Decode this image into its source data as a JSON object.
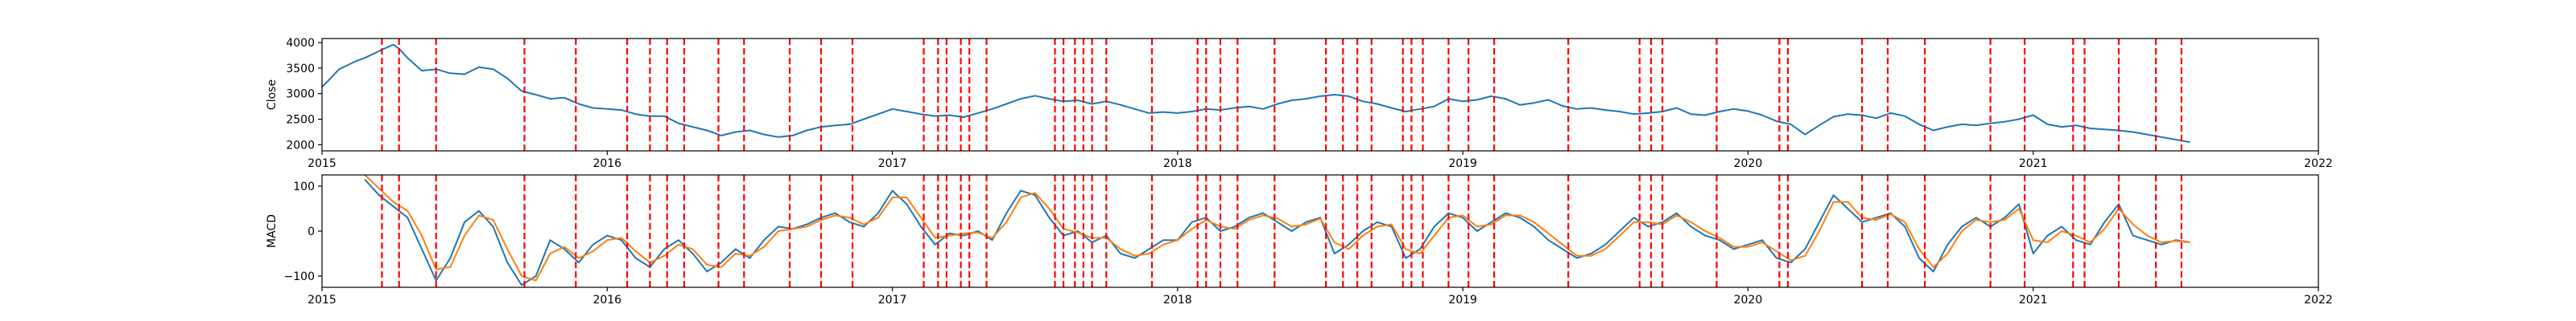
{
  "chart_data": [
    {
      "type": "line",
      "title": "",
      "xlabel": "",
      "ylabel": "Close",
      "xlim": [
        2015.0,
        2022.0
      ],
      "ylim": [
        1880,
        4080
      ],
      "x_ticks": [
        2015,
        2016,
        2017,
        2018,
        2019,
        2020,
        2021,
        2022
      ],
      "x_tick_labels": [
        "2015",
        "2016",
        "2017",
        "2018",
        "2019",
        "2020",
        "2021",
        "2022"
      ],
      "y_ticks": [
        2000,
        2500,
        3000,
        3500,
        4000
      ],
      "y_tick_labels": [
        "2000",
        "2500",
        "3000",
        "3500",
        "4000"
      ],
      "grid": false,
      "series": [
        {
          "color": "#1f77b4",
          "x": [
            2015.0,
            2015.03,
            2015.06,
            2015.09,
            2015.12,
            2015.15,
            2015.18,
            2015.21,
            2015.25,
            2015.27,
            2015.3,
            2015.35,
            2015.4,
            2015.45,
            2015.5,
            2015.55,
            2015.6,
            2015.65,
            2015.7,
            2015.75,
            2015.8,
            2015.85,
            2015.9,
            2015.95,
            2016.0,
            2016.05,
            2016.1,
            2016.15,
            2016.2,
            2016.25,
            2016.3,
            2016.35,
            2016.4,
            2016.45,
            2016.5,
            2016.55,
            2016.6,
            2016.65,
            2016.7,
            2016.75,
            2016.8,
            2016.85,
            2016.9,
            2016.95,
            2017.0,
            2017.05,
            2017.1,
            2017.15,
            2017.2,
            2017.25,
            2017.3,
            2017.35,
            2017.4,
            2017.45,
            2017.5,
            2017.55,
            2017.6,
            2017.65,
            2017.7,
            2017.75,
            2017.8,
            2017.85,
            2017.9,
            2017.95,
            2018.0,
            2018.05,
            2018.1,
            2018.15,
            2018.2,
            2018.25,
            2018.3,
            2018.35,
            2018.4,
            2018.45,
            2018.5,
            2018.55,
            2018.6,
            2018.65,
            2018.7,
            2018.75,
            2018.8,
            2018.85,
            2018.9,
            2018.95,
            2019.0,
            2019.05,
            2019.1,
            2019.15,
            2019.2,
            2019.25,
            2019.3,
            2019.35,
            2019.4,
            2019.45,
            2019.5,
            2019.55,
            2019.6,
            2019.65,
            2019.7,
            2019.75,
            2019.8,
            2019.85,
            2019.9,
            2019.95,
            2020.0,
            2020.05,
            2020.1,
            2020.15,
            2020.2,
            2020.25,
            2020.3,
            2020.35,
            2020.4,
            2020.45,
            2020.5,
            2020.55,
            2020.6,
            2020.65,
            2020.7,
            2020.75,
            2020.8,
            2020.85,
            2020.9,
            2020.95,
            2021.0,
            2021.05,
            2021.1,
            2021.15,
            2021.2,
            2021.25,
            2021.3,
            2021.35,
            2021.4,
            2021.45,
            2021.5,
            2021.55
          ],
          "y": [
            3130,
            3300,
            3480,
            3560,
            3640,
            3700,
            3780,
            3860,
            3960,
            3880,
            3700,
            3450,
            3480,
            3400,
            3380,
            3520,
            3480,
            3300,
            3050,
            2980,
            2900,
            2920,
            2800,
            2720,
            2700,
            2680,
            2600,
            2560,
            2560,
            2420,
            2350,
            2280,
            2180,
            2250,
            2280,
            2200,
            2150,
            2180,
            2280,
            2350,
            2380,
            2400,
            2500,
            2600,
            2700,
            2650,
            2600,
            2560,
            2580,
            2540,
            2620,
            2700,
            2800,
            2900,
            2960,
            2900,
            2850,
            2870,
            2800,
            2850,
            2780,
            2700,
            2620,
            2640,
            2620,
            2650,
            2700,
            2680,
            2720,
            2750,
            2700,
            2800,
            2870,
            2900,
            2950,
            2980,
            2950,
            2850,
            2800,
            2720,
            2650,
            2700,
            2750,
            2900,
            2850,
            2880,
            2950,
            2900,
            2780,
            2820,
            2880,
            2760,
            2700,
            2720,
            2680,
            2650,
            2600,
            2620,
            2650,
            2720,
            2600,
            2580,
            2650,
            2700,
            2660,
            2580,
            2460,
            2400,
            2200,
            2380,
            2550,
            2600,
            2580,
            2520,
            2620,
            2560,
            2400,
            2280,
            2350,
            2400,
            2380,
            2420,
            2450,
            2500,
            2580,
            2400,
            2350,
            2380,
            2320,
            2300,
            2280,
            2250,
            2200,
            2150,
            2100,
            2050
          ]
        }
      ],
      "vlines": [
        2015.21,
        2015.27,
        2015.4,
        2015.71,
        2015.89,
        2016.07,
        2016.15,
        2016.21,
        2016.27,
        2016.39,
        2016.48,
        2016.64,
        2016.75,
        2016.86,
        2017.11,
        2017.16,
        2017.19,
        2017.24,
        2017.27,
        2017.33,
        2017.57,
        2017.6,
        2017.64,
        2017.67,
        2017.7,
        2017.75,
        2017.91,
        2018.07,
        2018.1,
        2018.15,
        2018.21,
        2018.34,
        2018.52,
        2018.58,
        2018.63,
        2018.68,
        2018.79,
        2018.82,
        2018.86,
        2018.95,
        2019.02,
        2019.11,
        2019.37,
        2019.62,
        2019.66,
        2019.7,
        2019.89,
        2020.11,
        2020.14,
        2020.4,
        2020.49,
        2020.62,
        2020.85,
        2020.97,
        2021.14,
        2021.18,
        2021.3,
        2021.43,
        2021.52
      ],
      "vline_color": "#ff0000"
    },
    {
      "type": "line",
      "title": "",
      "xlabel": "",
      "ylabel": "MACD",
      "xlim": [
        2015.0,
        2022.0
      ],
      "ylim": [
        -125,
        125
      ],
      "x_ticks": [
        2015,
        2016,
        2017,
        2018,
        2019,
        2020,
        2021,
        2022
      ],
      "x_tick_labels": [
        "2015",
        "2016",
        "2017",
        "2018",
        "2019",
        "2020",
        "2021",
        "2022"
      ],
      "y_ticks": [
        -100,
        0,
        100
      ],
      "y_tick_labels": [
        "−100",
        "0",
        "100"
      ],
      "grid": false,
      "series": [
        {
          "color": "#1f77b4",
          "x": [
            2015.15,
            2015.2,
            2015.25,
            2015.3,
            2015.35,
            2015.4,
            2015.45,
            2015.5,
            2015.55,
            2015.6,
            2015.65,
            2015.7,
            2015.75,
            2015.8,
            2015.85,
            2015.9,
            2015.95,
            2016.0,
            2016.05,
            2016.1,
            2016.15,
            2016.2,
            2016.25,
            2016.3,
            2016.35,
            2016.4,
            2016.45,
            2016.5,
            2016.55,
            2016.6,
            2016.65,
            2016.7,
            2016.75,
            2016.8,
            2016.85,
            2016.9,
            2016.95,
            2017.0,
            2017.05,
            2017.1,
            2017.15,
            2017.2,
            2017.25,
            2017.3,
            2017.35,
            2017.4,
            2017.45,
            2017.5,
            2017.55,
            2017.6,
            2017.65,
            2017.7,
            2017.75,
            2017.8,
            2017.85,
            2017.9,
            2017.95,
            2018.0,
            2018.05,
            2018.1,
            2018.15,
            2018.2,
            2018.25,
            2018.3,
            2018.35,
            2018.4,
            2018.45,
            2018.5,
            2018.55,
            2018.6,
            2018.65,
            2018.7,
            2018.75,
            2018.8,
            2018.85,
            2018.9,
            2018.95,
            2019.0,
            2019.05,
            2019.1,
            2019.15,
            2019.2,
            2019.25,
            2019.3,
            2019.35,
            2019.4,
            2019.45,
            2019.5,
            2019.55,
            2019.6,
            2019.65,
            2019.7,
            2019.75,
            2019.8,
            2019.85,
            2019.9,
            2019.95,
            2020.0,
            2020.05,
            2020.1,
            2020.15,
            2020.2,
            2020.25,
            2020.3,
            2020.35,
            2020.4,
            2020.45,
            2020.5,
            2020.55,
            2020.6,
            2020.65,
            2020.7,
            2020.75,
            2020.8,
            2020.85,
            2020.9,
            2020.95,
            2021.0,
            2021.05,
            2021.1,
            2021.15,
            2021.2,
            2021.25,
            2021.3,
            2021.35,
            2021.4,
            2021.45,
            2021.5,
            2021.55
          ],
          "y": [
            115,
            80,
            55,
            30,
            -40,
            -110,
            -60,
            20,
            45,
            10,
            -70,
            -120,
            -100,
            -20,
            -40,
            -70,
            -30,
            -10,
            -20,
            -60,
            -80,
            -40,
            -20,
            -50,
            -90,
            -70,
            -40,
            -60,
            -20,
            10,
            5,
            15,
            30,
            40,
            20,
            10,
            40,
            90,
            60,
            10,
            -30,
            -5,
            -10,
            0,
            -20,
            40,
            90,
            80,
            30,
            -10,
            0,
            -25,
            -10,
            -50,
            -60,
            -40,
            -20,
            -20,
            20,
            30,
            0,
            10,
            30,
            40,
            20,
            0,
            20,
            30,
            -50,
            -30,
            0,
            20,
            10,
            -60,
            -40,
            10,
            40,
            30,
            0,
            20,
            40,
            30,
            10,
            -20,
            -40,
            -60,
            -50,
            -30,
            0,
            30,
            10,
            20,
            40,
            10,
            -10,
            -20,
            -40,
            -30,
            -20,
            -60,
            -70,
            -40,
            20,
            80,
            50,
            20,
            30,
            40,
            10,
            -60,
            -90,
            -30,
            10,
            30,
            10,
            30,
            60,
            -50,
            -10,
            10,
            -20,
            -30,
            20,
            60,
            -10,
            -20,
            -30,
            -20,
            -25
          ]
        },
        {
          "color": "#ff7f0e",
          "x": [
            2015.15,
            2015.2,
            2015.25,
            2015.3,
            2015.35,
            2015.4,
            2015.45,
            2015.5,
            2015.55,
            2015.6,
            2015.65,
            2015.7,
            2015.75,
            2015.8,
            2015.85,
            2015.9,
            2015.95,
            2016.0,
            2016.05,
            2016.1,
            2016.15,
            2016.2,
            2016.25,
            2016.3,
            2016.35,
            2016.4,
            2016.45,
            2016.5,
            2016.55,
            2016.6,
            2016.65,
            2016.7,
            2016.75,
            2016.8,
            2016.85,
            2016.9,
            2016.95,
            2017.0,
            2017.05,
            2017.1,
            2017.15,
            2017.2,
            2017.25,
            2017.3,
            2017.35,
            2017.4,
            2017.45,
            2017.5,
            2017.55,
            2017.6,
            2017.65,
            2017.7,
            2017.75,
            2017.8,
            2017.85,
            2017.9,
            2017.95,
            2018.0,
            2018.05,
            2018.1,
            2018.15,
            2018.2,
            2018.25,
            2018.3,
            2018.35,
            2018.4,
            2018.45,
            2018.5,
            2018.55,
            2018.6,
            2018.65,
            2018.7,
            2018.75,
            2018.8,
            2018.85,
            2018.9,
            2018.95,
            2019.0,
            2019.05,
            2019.1,
            2019.15,
            2019.2,
            2019.25,
            2019.3,
            2019.35,
            2019.4,
            2019.45,
            2019.5,
            2019.55,
            2019.6,
            2019.65,
            2019.7,
            2019.75,
            2019.8,
            2019.85,
            2019.9,
            2019.95,
            2020.0,
            2020.05,
            2020.1,
            2020.15,
            2020.2,
            2020.25,
            2020.3,
            2020.35,
            2020.4,
            2020.45,
            2020.5,
            2020.55,
            2020.6,
            2020.65,
            2020.7,
            2020.75,
            2020.8,
            2020.85,
            2020.9,
            2020.95,
            2021.0,
            2021.05,
            2021.1,
            2021.15,
            2021.2,
            2021.25,
            2021.3,
            2021.35,
            2021.4,
            2021.45,
            2021.5,
            2021.55
          ],
          "y": [
            125,
            95,
            65,
            45,
            -10,
            -85,
            -80,
            -10,
            35,
            25,
            -40,
            -100,
            -110,
            -50,
            -35,
            -60,
            -45,
            -20,
            -15,
            -45,
            -70,
            -55,
            -30,
            -40,
            -75,
            -80,
            -50,
            -55,
            -35,
            0,
            5,
            10,
            25,
            35,
            30,
            15,
            30,
            75,
            75,
            30,
            -15,
            -10,
            -5,
            -3,
            -15,
            20,
            75,
            85,
            50,
            5,
            -3,
            -15,
            -15,
            -40,
            -55,
            -50,
            -30,
            -20,
            5,
            25,
            10,
            5,
            25,
            35,
            28,
            10,
            15,
            28,
            -25,
            -40,
            -10,
            10,
            15,
            -40,
            -50,
            -10,
            30,
            35,
            10,
            15,
            35,
            35,
            20,
            -5,
            -30,
            -55,
            -55,
            -40,
            -10,
            20,
            20,
            15,
            35,
            20,
            0,
            -15,
            -35,
            -35,
            -25,
            -45,
            -65,
            -55,
            0,
            65,
            65,
            30,
            25,
            38,
            20,
            -40,
            -80,
            -50,
            0,
            25,
            20,
            25,
            50,
            -20,
            -25,
            0,
            -10,
            -25,
            5,
            50,
            15,
            -10,
            -25,
            -22,
            -25
          ]
        }
      ],
      "vlines": [
        2015.21,
        2015.27,
        2015.4,
        2015.71,
        2015.89,
        2016.07,
        2016.15,
        2016.21,
        2016.27,
        2016.39,
        2016.48,
        2016.64,
        2016.75,
        2016.86,
        2017.11,
        2017.16,
        2017.19,
        2017.24,
        2017.27,
        2017.33,
        2017.57,
        2017.6,
        2017.64,
        2017.67,
        2017.7,
        2017.75,
        2017.91,
        2018.07,
        2018.1,
        2018.15,
        2018.21,
        2018.34,
        2018.52,
        2018.58,
        2018.63,
        2018.68,
        2018.79,
        2018.82,
        2018.86,
        2018.95,
        2019.02,
        2019.11,
        2019.37,
        2019.62,
        2019.66,
        2019.7,
        2019.89,
        2020.11,
        2020.14,
        2020.4,
        2020.49,
        2020.62,
        2020.85,
        2020.97,
        2021.14,
        2021.18,
        2021.3,
        2021.43,
        2021.52
      ],
      "vline_color": "#ff0000"
    }
  ]
}
